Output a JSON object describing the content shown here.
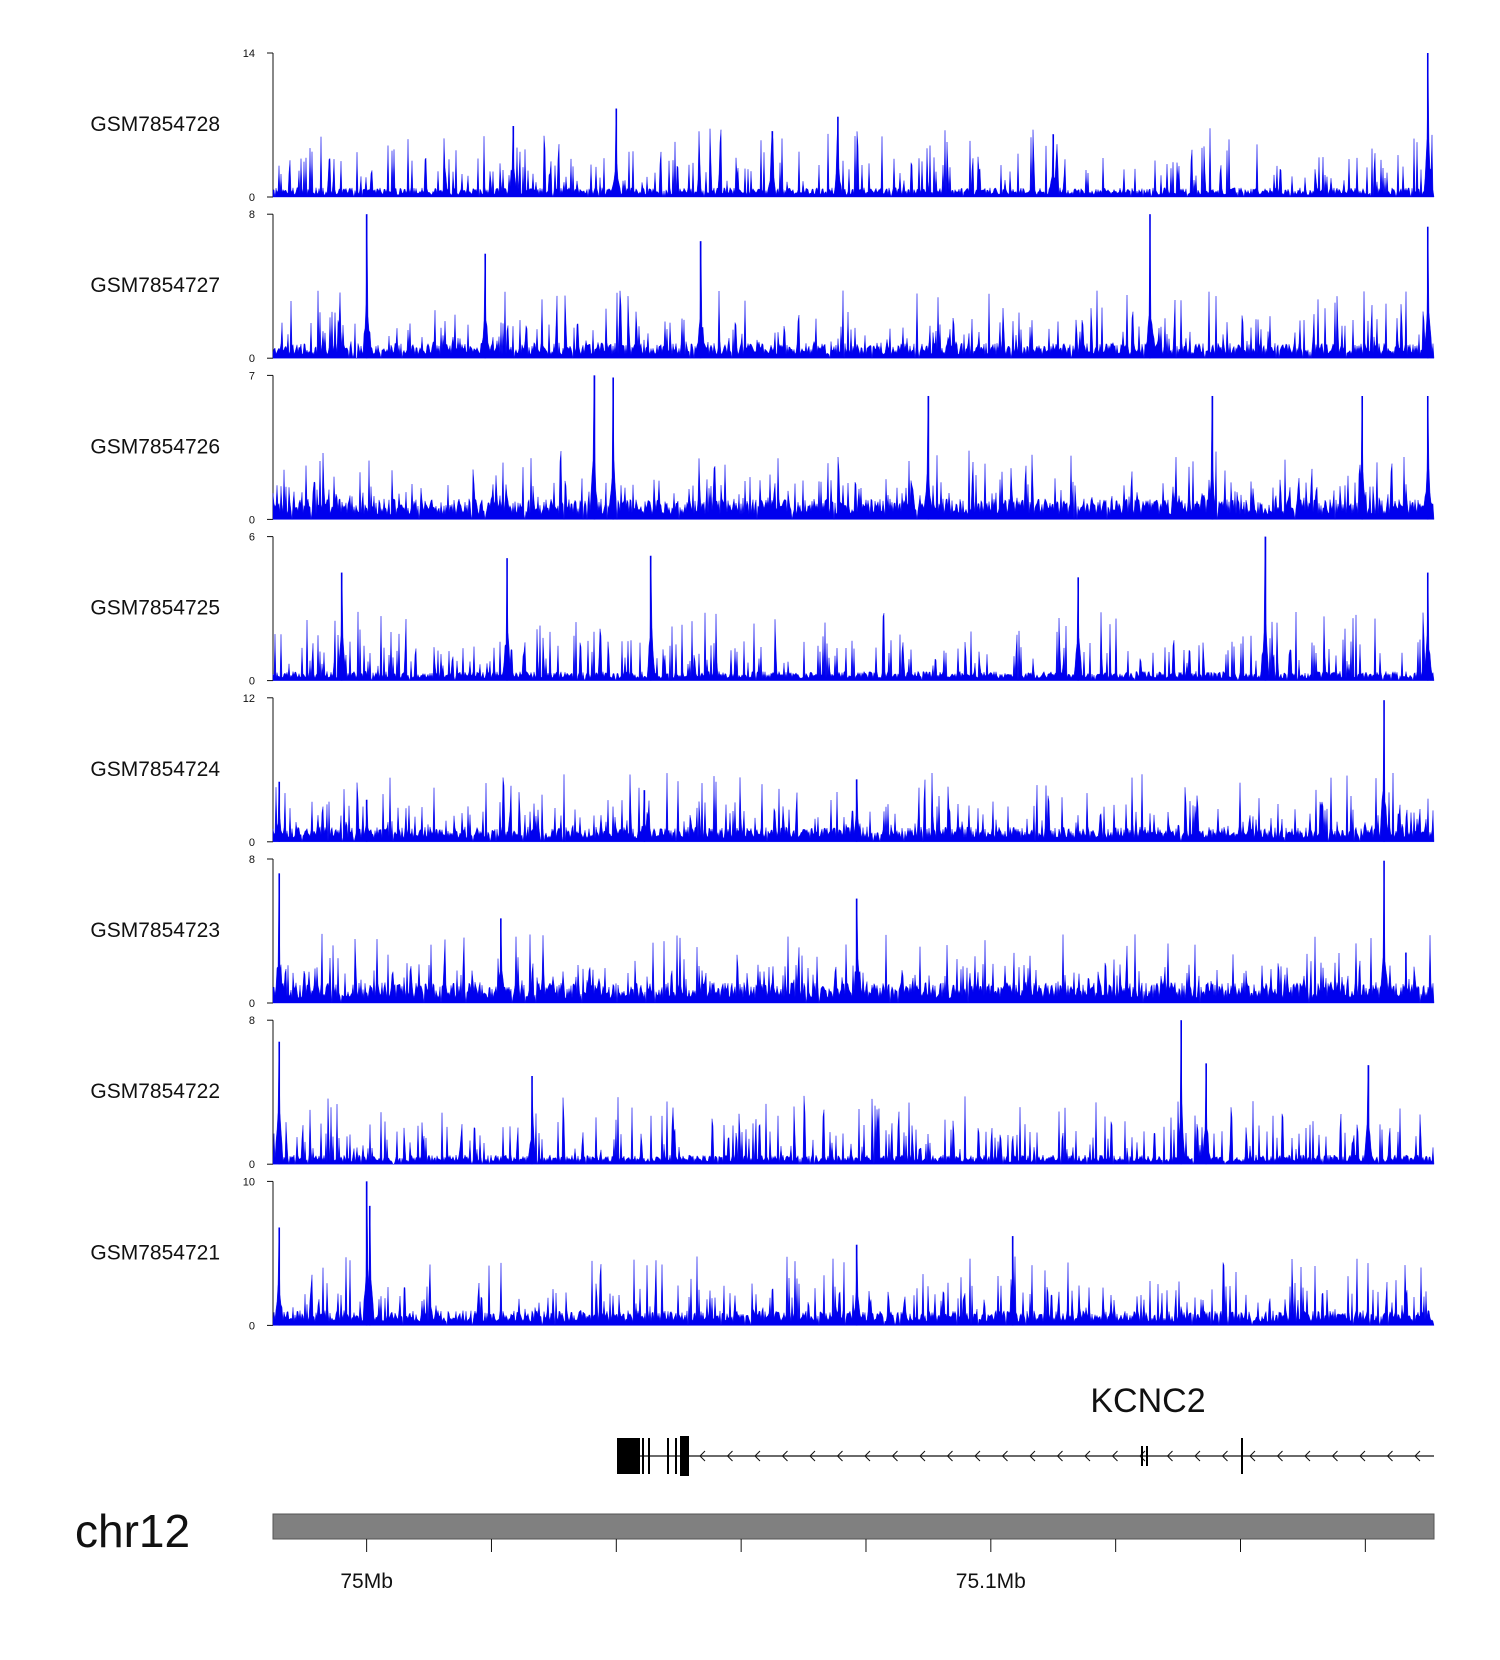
{
  "chart_data": {
    "type": "area",
    "title": "",
    "chromosome": "chr12",
    "region_mb": [
      74.985,
      75.171
    ],
    "series_color": "#0000EE",
    "tracks": [
      {
        "name": "GSM7854728",
        "ymax": 14,
        "ymin": 0,
        "peaks": [
          [
            75.04,
            8.6
          ],
          [
            75.065,
            6.4
          ],
          [
            75.0755,
            7.8
          ],
          [
            75.17,
            14
          ],
          [
            75.0235,
            6.9
          ],
          [
            75.11,
            6.1
          ]
        ]
      },
      {
        "name": "GSM7854727",
        "ymax": 8,
        "ymin": 0,
        "peaks": [
          [
            75.0,
            8.0
          ],
          [
            75.1255,
            8.0
          ],
          [
            75.0535,
            6.5
          ],
          [
            75.17,
            7.3
          ],
          [
            75.019,
            5.8
          ]
        ]
      },
      {
        "name": "GSM7854726",
        "ymax": 7,
        "ymin": 0,
        "peaks": [
          [
            75.0365,
            7.0
          ],
          [
            75.0395,
            6.9
          ],
          [
            75.09,
            6.0
          ],
          [
            75.1355,
            6.0
          ],
          [
            75.1595,
            6.0
          ],
          [
            75.17,
            6.0
          ]
        ]
      },
      {
        "name": "GSM7854725",
        "ymax": 6,
        "ymin": 0,
        "peaks": [
          [
            75.144,
            6.0
          ],
          [
            75.0225,
            5.1
          ],
          [
            75.0455,
            5.2
          ],
          [
            74.996,
            4.5
          ],
          [
            75.17,
            4.5
          ],
          [
            75.114,
            4.3
          ]
        ]
      },
      {
        "name": "GSM7854724",
        "ymax": 12,
        "ymin": 0,
        "peaks": [
          [
            75.163,
            11.8
          ],
          [
            75.0785,
            5.2
          ],
          [
            74.986,
            5.0
          ],
          [
            75.0,
            3.5
          ],
          [
            75.0445,
            4.3
          ]
        ]
      },
      {
        "name": "GSM7854723",
        "ymax": 8,
        "ymin": 0,
        "peaks": [
          [
            75.163,
            7.9
          ],
          [
            74.986,
            7.2
          ],
          [
            75.0785,
            5.8
          ],
          [
            75.0215,
            4.7
          ],
          [
            75.1665,
            2.8
          ]
        ]
      },
      {
        "name": "GSM7854722",
        "ymax": 8,
        "ymin": 0,
        "peaks": [
          [
            75.1305,
            8.0
          ],
          [
            75.1345,
            5.6
          ],
          [
            75.1605,
            5.5
          ],
          [
            74.986,
            6.8
          ],
          [
            75.0265,
            4.9
          ]
        ]
      },
      {
        "name": "GSM7854721",
        "ymax": 10,
        "ymin": 0,
        "peaks": [
          [
            75.0,
            10.0
          ],
          [
            74.986,
            6.8
          ],
          [
            75.1035,
            6.2
          ],
          [
            75.0785,
            5.6
          ],
          [
            75.0005,
            8.3
          ]
        ]
      }
    ],
    "gene": {
      "name": "KCNC2",
      "strand": "-"
    },
    "x_axis": {
      "ticks": [
        75.0,
        75.02,
        75.04,
        75.06,
        75.08,
        75.1,
        75.12,
        75.14,
        75.16
      ],
      "labels": {
        "75": "75Mb",
        "75.1": "75.1Mb"
      }
    }
  }
}
